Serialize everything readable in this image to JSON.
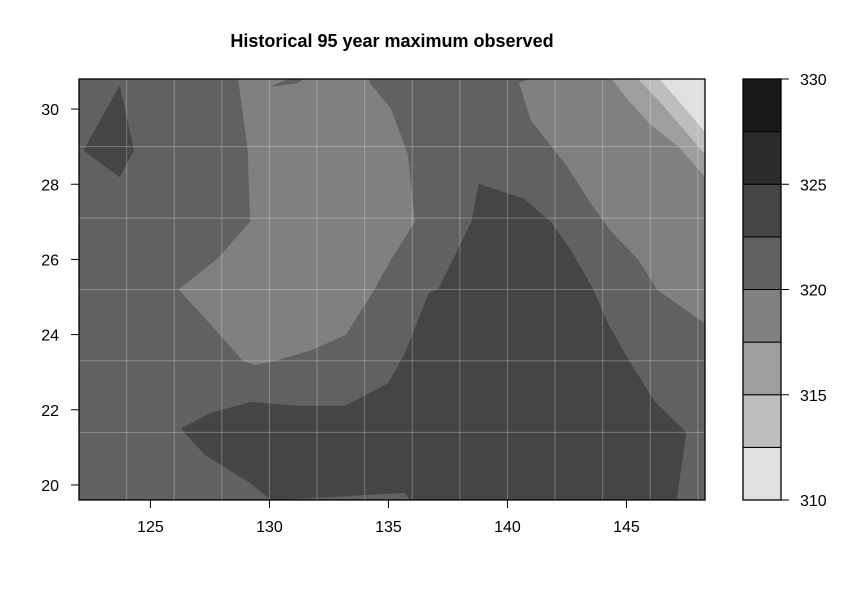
{
  "chart_data": {
    "type": "heatmap",
    "title": "Historical 95 year maximum observed",
    "xlabel": "",
    "ylabel": "",
    "x_ticks": [
      "125",
      "130",
      "135",
      "140",
      "145"
    ],
    "y_ticks": [
      "20",
      "22",
      "24",
      "26",
      "28",
      "30"
    ],
    "x_tick_values": [
      125,
      130,
      135,
      140,
      145
    ],
    "y_tick_values": [
      20,
      22,
      24,
      26,
      28,
      30
    ],
    "xlim": [
      122,
      148.3
    ],
    "ylim": [
      19.6,
      30.8
    ],
    "grid": true,
    "legend_position": "right",
    "colorbar": {
      "levels": [
        310,
        312.5,
        315,
        317.5,
        320,
        322.5,
        325,
        327.5,
        330
      ],
      "tick_labels": [
        "310",
        "315",
        "320",
        "325",
        "330"
      ],
      "tick_values": [
        310,
        315,
        320,
        325,
        330
      ],
      "colors": [
        "#e0e0e0",
        "#bebebe",
        "#9e9e9e",
        "#808080",
        "#616161",
        "#454545",
        "#2b2b2b",
        "#181818"
      ]
    },
    "regions": [
      {
        "level_band": "320-322.5",
        "color": "#616161",
        "polygon": [
          [
            122,
            19.6
          ],
          [
            148.3,
            19.6
          ],
          [
            148.3,
            30.8
          ],
          [
            122,
            30.8
          ]
        ]
      },
      {
        "level_band": "317.5-320",
        "color": "#808080",
        "polygon": [
          [
            128.7,
            30.8
          ],
          [
            129.1,
            28.9
          ],
          [
            129.2,
            27.0
          ],
          [
            127.8,
            26.0
          ],
          [
            126.2,
            25.2
          ],
          [
            127.5,
            24.3
          ],
          [
            128.9,
            23.3
          ],
          [
            129.4,
            23.2
          ],
          [
            130.2,
            23.3
          ],
          [
            131.8,
            23.6
          ],
          [
            133.2,
            24.0
          ],
          [
            134.3,
            25.1
          ],
          [
            135.1,
            26.0
          ],
          [
            136.1,
            27.0
          ],
          [
            135.8,
            28.8
          ],
          [
            135.1,
            30.0
          ],
          [
            134.2,
            30.7
          ],
          [
            134.2,
            30.8
          ]
        ]
      },
      {
        "level_band": "317.5-320",
        "color": "#808080",
        "polygon": [
          [
            141.0,
            30.8
          ],
          [
            140.5,
            30.7
          ],
          [
            141.0,
            29.7
          ],
          [
            142.5,
            28.5
          ],
          [
            143.5,
            27.5
          ],
          [
            144.3,
            26.8
          ],
          [
            145.5,
            26.0
          ],
          [
            146.3,
            25.2
          ],
          [
            148.3,
            24.3
          ],
          [
            148.3,
            30.8
          ]
        ]
      },
      {
        "level_band": "315-317.5",
        "color": "#9e9e9e",
        "polygon": [
          [
            144.4,
            30.8
          ],
          [
            145.0,
            30.3
          ],
          [
            146.0,
            29.6
          ],
          [
            147.2,
            29.0
          ],
          [
            148.3,
            28.2
          ],
          [
            148.3,
            30.8
          ]
        ]
      },
      {
        "level_band": "312.5-315",
        "color": "#bebebe",
        "polygon": [
          [
            145.5,
            30.8
          ],
          [
            146.4,
            30.2
          ],
          [
            147.5,
            29.4
          ],
          [
            148.3,
            28.8
          ],
          [
            148.3,
            30.8
          ]
        ]
      },
      {
        "level_band": "310-312.5",
        "color": "#e0e0e0",
        "polygon": [
          [
            146.4,
            30.8
          ],
          [
            147.5,
            30.0
          ],
          [
            148.3,
            29.4
          ],
          [
            148.3,
            30.8
          ]
        ]
      },
      {
        "level_band": "322.5-325",
        "color": "#454545",
        "polygon": [
          [
            122.2,
            28.9
          ],
          [
            123.7,
            30.6
          ],
          [
            124.3,
            28.9
          ],
          [
            123.7,
            28.2
          ]
        ]
      },
      {
        "level_band": "322.5-325",
        "color": "#454545",
        "polygon": [
          [
            126.3,
            21.5
          ],
          [
            127.5,
            21.9
          ],
          [
            129.2,
            22.2
          ],
          [
            131.2,
            22.1
          ],
          [
            133.2,
            22.1
          ],
          [
            135.0,
            22.7
          ],
          [
            135.7,
            23.5
          ],
          [
            136.7,
            25.1
          ],
          [
            137.1,
            25.2
          ],
          [
            138.5,
            27.0
          ],
          [
            138.8,
            28.0
          ],
          [
            140.7,
            27.6
          ],
          [
            141.8,
            27.0
          ],
          [
            142.6,
            26.3
          ],
          [
            143.6,
            25.2
          ],
          [
            144.2,
            24.3
          ],
          [
            145.1,
            23.3
          ],
          [
            146.2,
            22.2
          ],
          [
            147.5,
            21.4
          ],
          [
            147.1,
            19.6
          ],
          [
            135.9,
            19.6
          ],
          [
            135.7,
            19.8
          ],
          [
            130.1,
            19.6
          ],
          [
            129.1,
            20.1
          ],
          [
            127.3,
            20.8
          ]
        ]
      },
      {
        "level_band": "320-322.5",
        "color": "#616161",
        "polygon": [
          [
            130.1,
            30.6
          ],
          [
            130.8,
            30.8
          ],
          [
            131.4,
            30.8
          ],
          [
            131.2,
            30.7
          ]
        ]
      }
    ]
  }
}
